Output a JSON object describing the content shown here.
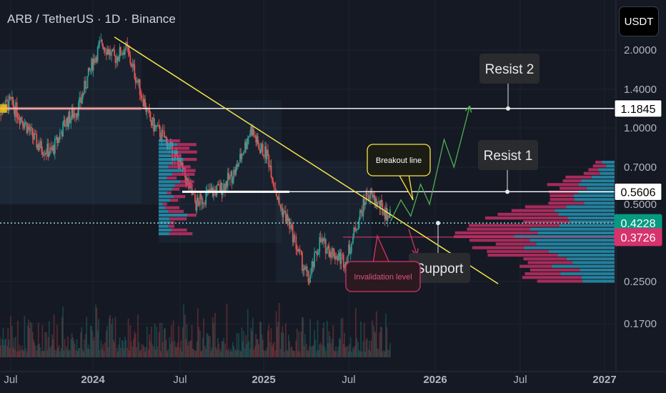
{
  "header": {
    "title": "ARB / TetherUS · 1D · Binance",
    "currency": "USDT"
  },
  "colors": {
    "bg": "#151924",
    "up": "#26a69a",
    "down": "#ef5350",
    "trendline": "#f5e44a",
    "projection": "#4caf50",
    "vp_up": "#2aa3c4",
    "vp_down": "#d6336c",
    "current": "#089981"
  },
  "chart_data": {
    "type": "candlestick",
    "x_ticks": [
      "Jul",
      "2024",
      "Jul",
      "2025",
      "Jul",
      "2026",
      "Jul",
      "2027"
    ],
    "y_ticks": [
      "2.0000",
      "1.4000",
      "1.0000",
      "0.7000",
      "0.5000",
      "0.2500",
      "0.1700"
    ],
    "price_labels": [
      {
        "value": "1.1845",
        "style": "white"
      },
      {
        "value": "0.5606",
        "style": "white"
      },
      {
        "value": "0.4228",
        "style": "green"
      },
      {
        "value": "0.3726",
        "style": "red"
      }
    ],
    "levels": [
      1.1845,
      0.5606,
      0.4228,
      0.3726
    ],
    "annotations": {
      "resist2": "Resist 2",
      "resist1": "Resist 1",
      "breakout": "Breakout line",
      "support": "Support",
      "invalidation": "Invalidation level"
    },
    "price_path": [
      [
        "2023-06-01",
        1.15
      ],
      [
        "2023-07-01",
        1.25
      ],
      [
        "2023-08-01",
        1.05
      ],
      [
        "2023-09-01",
        0.85
      ],
      [
        "2023-10-01",
        0.8
      ],
      [
        "2023-11-01",
        1.05
      ],
      [
        "2023-12-01",
        1.2
      ],
      [
        "2024-01-01",
        1.8
      ],
      [
        "2024-01-20",
        2.15
      ],
      [
        "2024-02-15",
        1.85
      ],
      [
        "2024-03-10",
        2.05
      ],
      [
        "2024-04-01",
        1.55
      ],
      [
        "2024-05-01",
        1.05
      ],
      [
        "2024-06-01",
        0.9
      ],
      [
        "2024-07-01",
        0.72
      ],
      [
        "2024-08-05",
        0.5
      ],
      [
        "2024-09-01",
        0.55
      ],
      [
        "2024-10-01",
        0.58
      ],
      [
        "2024-11-01",
        0.68
      ],
      [
        "2024-12-05",
        1.0
      ],
      [
        "2024-12-20",
        0.85
      ],
      [
        "2025-01-10",
        0.78
      ],
      [
        "2025-02-03",
        0.5
      ],
      [
        "2025-02-25",
        0.42
      ],
      [
        "2025-03-15",
        0.33
      ],
      [
        "2025-04-07",
        0.25
      ],
      [
        "2025-05-01",
        0.36
      ],
      [
        "2025-06-01",
        0.32
      ],
      [
        "2025-06-25",
        0.3
      ],
      [
        "2025-07-15",
        0.4
      ],
      [
        "2025-08-10",
        0.55
      ],
      [
        "2025-08-25",
        0.52
      ],
      [
        "2025-09-15",
        0.47
      ],
      [
        "2025-09-28",
        0.45
      ]
    ],
    "projection_path": [
      [
        "2025-09-28",
        0.43
      ],
      [
        "2025-10-20",
        0.52
      ],
      [
        "2025-11-10",
        0.45
      ],
      [
        "2025-12-01",
        0.6
      ],
      [
        "2025-12-20",
        0.5
      ],
      [
        "2026-01-20",
        0.9
      ],
      [
        "2026-02-10",
        0.7
      ],
      [
        "2026-03-15",
        1.2
      ]
    ],
    "trendline": [
      [
        "2024-02-15",
        2.25
      ],
      [
        "2026-05-15",
        0.245
      ]
    ]
  }
}
